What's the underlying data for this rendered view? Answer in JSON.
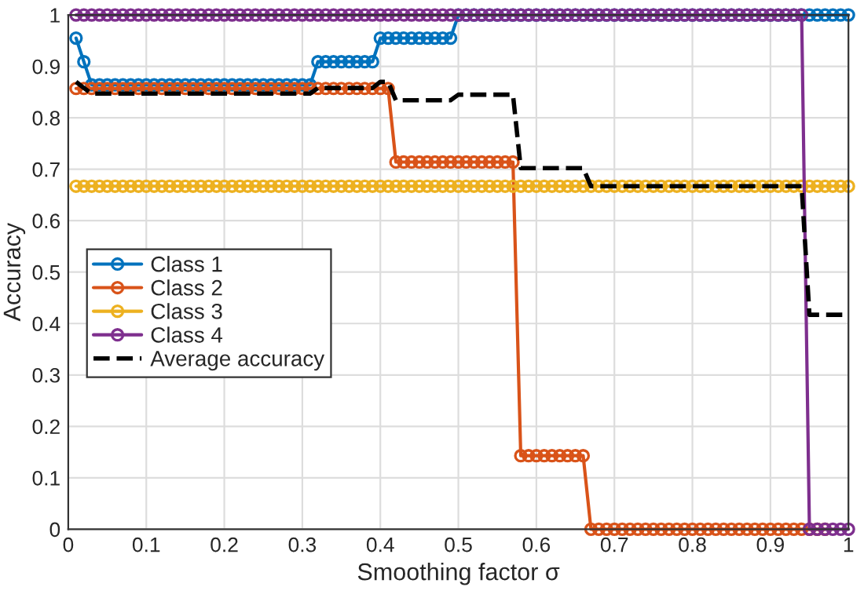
{
  "chart_data": {
    "type": "line",
    "xlabel": "Smoothing factor σ",
    "ylabel": "Accuracy",
    "x": [
      0.01,
      0.02,
      0.03,
      0.04,
      0.05,
      0.06,
      0.07,
      0.08,
      0.09,
      0.1,
      0.11,
      0.12,
      0.13,
      0.14,
      0.15,
      0.16,
      0.17,
      0.18,
      0.19,
      0.2,
      0.21,
      0.22,
      0.23,
      0.24,
      0.25,
      0.26,
      0.27,
      0.28,
      0.29,
      0.3,
      0.31,
      0.32,
      0.33,
      0.34,
      0.35,
      0.36,
      0.37,
      0.38,
      0.39,
      0.4,
      0.41,
      0.42,
      0.43,
      0.44,
      0.45,
      0.46,
      0.47,
      0.48,
      0.49,
      0.5,
      0.51,
      0.52,
      0.53,
      0.54,
      0.55,
      0.56,
      0.57,
      0.58,
      0.59,
      0.6,
      0.61,
      0.62,
      0.63,
      0.64,
      0.65,
      0.66,
      0.67,
      0.68,
      0.69,
      0.7,
      0.71,
      0.72,
      0.73,
      0.74,
      0.75,
      0.76,
      0.77,
      0.78,
      0.79,
      0.8,
      0.81,
      0.82,
      0.83,
      0.84,
      0.85,
      0.86,
      0.87,
      0.88,
      0.89,
      0.9,
      0.91,
      0.92,
      0.93,
      0.94,
      0.95,
      0.96,
      0.97,
      0.98,
      0.99,
      1
    ],
    "series": [
      {
        "name": "Class 1",
        "color": "#0072bd",
        "values": [
          0.955,
          0.909,
          0.864,
          0.864,
          0.864,
          0.864,
          0.864,
          0.864,
          0.864,
          0.864,
          0.864,
          0.864,
          0.864,
          0.864,
          0.864,
          0.864,
          0.864,
          0.864,
          0.864,
          0.864,
          0.864,
          0.864,
          0.864,
          0.864,
          0.864,
          0.864,
          0.864,
          0.864,
          0.864,
          0.864,
          0.864,
          0.909,
          0.909,
          0.909,
          0.909,
          0.909,
          0.909,
          0.909,
          0.909,
          0.955,
          0.955,
          0.955,
          0.955,
          0.955,
          0.955,
          0.955,
          0.955,
          0.955,
          0.955,
          1,
          1,
          1,
          1,
          1,
          1,
          1,
          1,
          1,
          1,
          1,
          1,
          1,
          1,
          1,
          1,
          1,
          1,
          1,
          1,
          1,
          1,
          1,
          1,
          1,
          1,
          1,
          1,
          1,
          1,
          1,
          1,
          1,
          1,
          1,
          1,
          1,
          1,
          1,
          1,
          1,
          1,
          1,
          1,
          1,
          1,
          1,
          1,
          1,
          1,
          1
        ]
      },
      {
        "name": "Class 2",
        "color": "#d95319",
        "values": [
          0.857,
          0.857,
          0.857,
          0.857,
          0.857,
          0.857,
          0.857,
          0.857,
          0.857,
          0.857,
          0.857,
          0.857,
          0.857,
          0.857,
          0.857,
          0.857,
          0.857,
          0.857,
          0.857,
          0.857,
          0.857,
          0.857,
          0.857,
          0.857,
          0.857,
          0.857,
          0.857,
          0.857,
          0.857,
          0.857,
          0.857,
          0.857,
          0.857,
          0.857,
          0.857,
          0.857,
          0.857,
          0.857,
          0.857,
          0.857,
          0.857,
          0.714,
          0.714,
          0.714,
          0.714,
          0.714,
          0.714,
          0.714,
          0.714,
          0.714,
          0.714,
          0.714,
          0.714,
          0.714,
          0.714,
          0.714,
          0.714,
          0.143,
          0.143,
          0.143,
          0.143,
          0.143,
          0.143,
          0.143,
          0.143,
          0.143,
          0,
          0,
          0,
          0,
          0,
          0,
          0,
          0,
          0,
          0,
          0,
          0,
          0,
          0,
          0,
          0,
          0,
          0,
          0,
          0,
          0,
          0,
          0,
          0,
          0,
          0,
          0,
          0,
          0,
          0,
          0,
          null,
          null,
          null
        ]
      },
      {
        "name": "Class 3",
        "color": "#edb120",
        "values": [
          0.667,
          0.667,
          0.667,
          0.667,
          0.667,
          0.667,
          0.667,
          0.667,
          0.667,
          0.667,
          0.667,
          0.667,
          0.667,
          0.667,
          0.667,
          0.667,
          0.667,
          0.667,
          0.667,
          0.667,
          0.667,
          0.667,
          0.667,
          0.667,
          0.667,
          0.667,
          0.667,
          0.667,
          0.667,
          0.667,
          0.667,
          0.667,
          0.667,
          0.667,
          0.667,
          0.667,
          0.667,
          0.667,
          0.667,
          0.667,
          0.667,
          0.667,
          0.667,
          0.667,
          0.667,
          0.667,
          0.667,
          0.667,
          0.667,
          0.667,
          0.667,
          0.667,
          0.667,
          0.667,
          0.667,
          0.667,
          0.667,
          0.667,
          0.667,
          0.667,
          0.667,
          0.667,
          0.667,
          0.667,
          0.667,
          0.667,
          0.667,
          0.667,
          0.667,
          0.667,
          0.667,
          0.667,
          0.667,
          0.667,
          0.667,
          0.667,
          0.667,
          0.667,
          0.667,
          0.667,
          0.667,
          0.667,
          0.667,
          0.667,
          0.667,
          0.667,
          0.667,
          0.667,
          0.667,
          0.667,
          0.667,
          0.667,
          0.667,
          0.667,
          0.667,
          0.667,
          0.667,
          0.667,
          0.667,
          0.667
        ]
      },
      {
        "name": "Class 4",
        "color": "#7e2f8e",
        "values": [
          1,
          1,
          1,
          1,
          1,
          1,
          1,
          1,
          1,
          1,
          1,
          1,
          1,
          1,
          1,
          1,
          1,
          1,
          1,
          1,
          1,
          1,
          1,
          1,
          1,
          1,
          1,
          1,
          1,
          1,
          1,
          1,
          1,
          1,
          1,
          1,
          1,
          1,
          1,
          1,
          1,
          1,
          1,
          1,
          1,
          1,
          1,
          1,
          1,
          1,
          1,
          1,
          1,
          1,
          1,
          1,
          1,
          1,
          1,
          1,
          1,
          1,
          1,
          1,
          1,
          1,
          1,
          1,
          1,
          1,
          1,
          1,
          1,
          1,
          1,
          1,
          1,
          1,
          1,
          1,
          1,
          1,
          1,
          1,
          1,
          1,
          1,
          1,
          1,
          1,
          1,
          1,
          1,
          1,
          0,
          0,
          0,
          0,
          0,
          0
        ]
      },
      {
        "name": "Average accuracy",
        "color": "#000000",
        "marker": "none",
        "line_style": "dashed",
        "values": [
          0.87,
          0.858,
          0.847,
          0.847,
          0.847,
          0.847,
          0.847,
          0.847,
          0.847,
          0.847,
          0.847,
          0.847,
          0.847,
          0.847,
          0.847,
          0.847,
          0.847,
          0.847,
          0.847,
          0.847,
          0.847,
          0.847,
          0.847,
          0.847,
          0.847,
          0.847,
          0.847,
          0.847,
          0.847,
          0.847,
          0.847,
          0.858,
          0.858,
          0.858,
          0.858,
          0.858,
          0.858,
          0.858,
          0.858,
          0.87,
          0.87,
          0.834,
          0.834,
          0.834,
          0.834,
          0.834,
          0.834,
          0.834,
          0.834,
          0.845,
          0.845,
          0.845,
          0.845,
          0.845,
          0.845,
          0.845,
          0.845,
          0.702,
          0.702,
          0.702,
          0.702,
          0.702,
          0.702,
          0.702,
          0.702,
          0.702,
          0.667,
          0.667,
          0.667,
          0.667,
          0.667,
          0.667,
          0.667,
          0.667,
          0.667,
          0.667,
          0.667,
          0.667,
          0.667,
          0.667,
          0.667,
          0.667,
          0.667,
          0.667,
          0.667,
          0.667,
          0.667,
          0.667,
          0.667,
          0.667,
          0.667,
          0.667,
          0.667,
          0.667,
          0.417,
          0.417,
          0.417,
          0.417,
          0.417,
          0.417
        ]
      }
    ],
    "xlim": [
      0,
      1
    ],
    "ylim": [
      0,
      1
    ],
    "xticks": [
      0,
      0.1,
      0.2,
      0.3,
      0.4,
      0.5,
      0.6,
      0.7,
      0.8,
      0.9,
      1
    ],
    "yticks": [
      0,
      0.1,
      0.2,
      0.3,
      0.4,
      0.5,
      0.6,
      0.7,
      0.8,
      0.9,
      1
    ],
    "grid": true,
    "legend": "left",
    "marker": "circle",
    "line_style": "solid"
  }
}
